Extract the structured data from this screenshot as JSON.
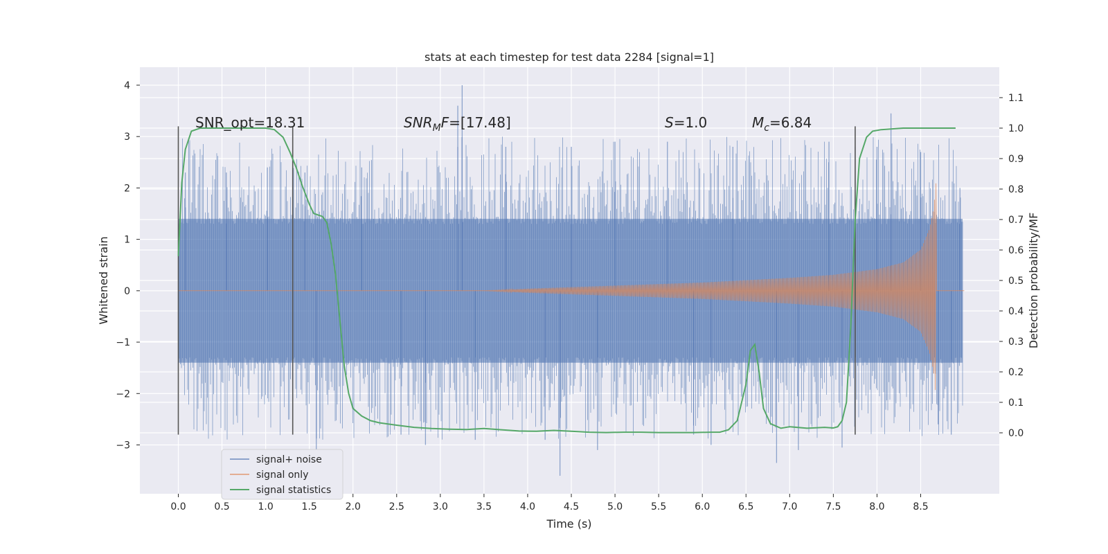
{
  "chart_data": {
    "type": "line",
    "title": "stats at each timestep for test data 2284 [signal=1]",
    "xlabel": "Time (s)",
    "ylabel": "Whitened strain",
    "ylabel_right": "Detection probability/MF",
    "xlim": [
      -0.44,
      9.4
    ],
    "ylim": [
      -3.95,
      4.35
    ],
    "ylim_right": [
      -0.2,
      1.2
    ],
    "x_ticks": [
      "0.0",
      "0.5",
      "1.0",
      "1.5",
      "2.0",
      "2.5",
      "3.0",
      "3.5",
      "4.0",
      "4.5",
      "5.0",
      "5.5",
      "6.0",
      "6.5",
      "7.0",
      "7.5",
      "8.0",
      "8.5"
    ],
    "y_ticks": [
      "4",
      "3",
      "2",
      "1",
      "0",
      "−1",
      "−2",
      "−3"
    ],
    "y_right_ticks": [
      "1.1",
      "1.0",
      "0.9",
      "0.8",
      "0.7",
      "0.6",
      "0.5",
      "0.4",
      "0.3",
      "0.2",
      "0.1",
      "0.0"
    ],
    "grid": true,
    "legend_position": "lower-left",
    "annotations": [
      {
        "text": "SNR_opt=18.31",
        "x": 0.2,
        "y": 3.2
      },
      {
        "text": "SNR_MF=[17.48]",
        "x": 2.6,
        "y": 3.2
      },
      {
        "text": "S=1.0",
        "x": 5.6,
        "y": 3.2
      },
      {
        "text": "M_c=6.84",
        "x": 6.6,
        "y": 3.2
      }
    ],
    "vertical_markers": [
      {
        "x": 0.0,
        "y0": -2.8,
        "y1": 3.2
      },
      {
        "x": 1.31,
        "y0": -2.8,
        "y1": 3.2
      },
      {
        "x": 7.75,
        "y0": -2.8,
        "y1": 3.2
      }
    ],
    "series": [
      {
        "name": "signal+ noise",
        "axis": "left",
        "color": "#4c72b0",
        "x_range": [
          0.0,
          8.98
        ],
        "typical_band": [
          -1.4,
          1.4
        ],
        "peaks": [
          {
            "x": 0.08,
            "y": 2.3
          },
          {
            "x": 0.55,
            "y": 2.3
          },
          {
            "x": 1.02,
            "y": 2.4
          },
          {
            "x": 1.45,
            "y": 2.3
          },
          {
            "x": 1.58,
            "y": -3.15
          },
          {
            "x": 2.1,
            "y": 2.4
          },
          {
            "x": 2.55,
            "y": -2.8
          },
          {
            "x": 2.83,
            "y": -3.0
          },
          {
            "x": 3.25,
            "y": 4.0
          },
          {
            "x": 3.2,
            "y": 3.6
          },
          {
            "x": 3.4,
            "y": -2.9
          },
          {
            "x": 3.75,
            "y": 2.8
          },
          {
            "x": 4.2,
            "y": -2.9
          },
          {
            "x": 4.37,
            "y": -3.6
          },
          {
            "x": 4.5,
            "y": 2.8
          },
          {
            "x": 4.8,
            "y": -3.1
          },
          {
            "x": 5.0,
            "y": 2.9
          },
          {
            "x": 5.6,
            "y": 2.9
          },
          {
            "x": 5.9,
            "y": -2.8
          },
          {
            "x": 6.1,
            "y": -3.0
          },
          {
            "x": 6.35,
            "y": 2.8
          },
          {
            "x": 6.85,
            "y": -3.35
          },
          {
            "x": 7.1,
            "y": -3.1
          },
          {
            "x": 7.45,
            "y": 2.9
          },
          {
            "x": 7.6,
            "y": -3.05
          },
          {
            "x": 7.75,
            "y": 2.8
          },
          {
            "x": 8.0,
            "y": 2.8
          },
          {
            "x": 8.16,
            "y": 3.45
          },
          {
            "x": 8.5,
            "y": 2.7
          },
          {
            "x": 8.7,
            "y": -2.6
          },
          {
            "x": 8.85,
            "y": -2.8
          },
          {
            "x": 8.95,
            "y": 2.0
          }
        ]
      },
      {
        "name": "signal only",
        "axis": "left",
        "color": "#dd8452",
        "x_range": [
          0.0,
          9.0
        ],
        "envelope": {
          "x": [
            0.0,
            3.5,
            4.0,
            5.0,
            6.0,
            7.0,
            7.5,
            8.0,
            8.3,
            8.5,
            8.6,
            8.65,
            8.68
          ],
          "amplitude": [
            0.0,
            0.0,
            0.04,
            0.1,
            0.16,
            0.25,
            0.31,
            0.42,
            0.55,
            0.8,
            1.2,
            1.6,
            2.2
          ]
        },
        "merger_time": 8.68
      },
      {
        "name": "signal statistics",
        "axis": "right",
        "color": "#55a868",
        "x": [
          0.0,
          0.04,
          0.08,
          0.15,
          0.25,
          0.4,
          0.6,
          0.8,
          1.0,
          1.1,
          1.2,
          1.28,
          1.35,
          1.42,
          1.5,
          1.55,
          1.6,
          1.65,
          1.7,
          1.75,
          1.8,
          1.85,
          1.9,
          1.95,
          2.0,
          2.1,
          2.2,
          2.3,
          2.5,
          2.7,
          2.9,
          3.1,
          3.3,
          3.5,
          3.7,
          3.9,
          4.1,
          4.3,
          4.5,
          4.7,
          4.9,
          5.1,
          5.3,
          5.5,
          5.7,
          5.9,
          6.1,
          6.2,
          6.3,
          6.4,
          6.5,
          6.55,
          6.6,
          6.65,
          6.7,
          6.78,
          6.9,
          7.0,
          7.2,
          7.4,
          7.5,
          7.55,
          7.6,
          7.65,
          7.7,
          7.75,
          7.8,
          7.88,
          7.95,
          8.05,
          8.3,
          8.6,
          8.9
        ],
        "y": [
          0.58,
          0.82,
          0.93,
          0.99,
          1.0,
          1.0,
          1.0,
          1.0,
          1.0,
          0.995,
          0.97,
          0.92,
          0.87,
          0.81,
          0.75,
          0.72,
          0.715,
          0.71,
          0.69,
          0.62,
          0.52,
          0.37,
          0.22,
          0.13,
          0.08,
          0.055,
          0.04,
          0.033,
          0.025,
          0.018,
          0.014,
          0.012,
          0.011,
          0.014,
          0.01,
          0.006,
          0.005,
          0.008,
          0.005,
          0.002,
          0.001,
          0.002,
          0.002,
          0.001,
          0.001,
          0.001,
          0.002,
          0.002,
          0.01,
          0.04,
          0.16,
          0.27,
          0.29,
          0.2,
          0.08,
          0.03,
          0.015,
          0.02,
          0.015,
          0.018,
          0.016,
          0.02,
          0.04,
          0.1,
          0.35,
          0.7,
          0.9,
          0.97,
          0.99,
          0.995,
          1.0,
          1.0,
          1.0
        ]
      }
    ]
  }
}
